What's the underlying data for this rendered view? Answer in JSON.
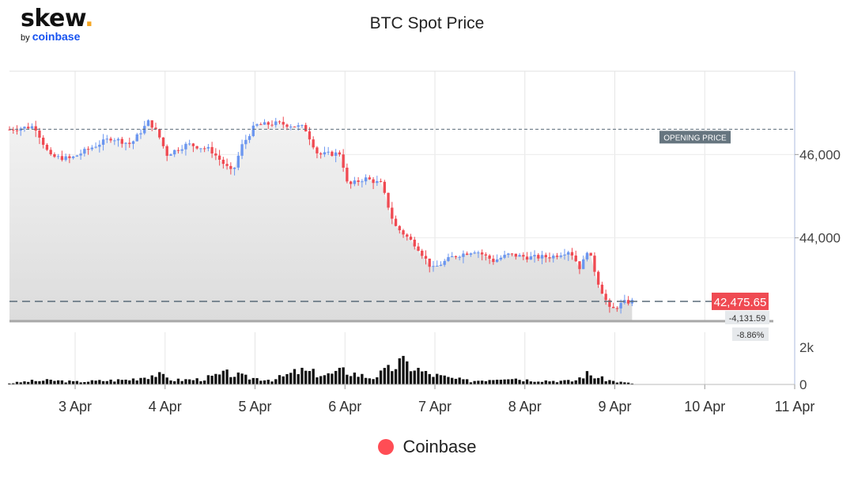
{
  "logo": {
    "main": "skew",
    "dot": ".",
    "by": "by",
    "brand": "coinbase"
  },
  "title": "BTC Spot Price",
  "legend": {
    "label": "Coinbase",
    "color": "#ff4d55"
  },
  "colors": {
    "up": "#6b96f0",
    "down": "#ef4a52",
    "volume": "#111111",
    "area_top": "#f2f2f2",
    "area_bottom": "#dcdcdc"
  },
  "chart_data": {
    "type": "candlestick",
    "title": "BTC Spot Price",
    "x_ticks": [
      "3 Apr",
      "4 Apr",
      "5 Apr",
      "6 Apr",
      "7 Apr",
      "8 Apr",
      "9 Apr",
      "10 Apr",
      "11 Apr"
    ],
    "x_range_days": [
      2.27,
      11.0
    ],
    "x_tick_days": [
      3,
      4,
      5,
      6,
      7,
      8,
      9,
      10,
      11
    ],
    "price_axis": {
      "ticks": [
        46000,
        44000
      ],
      "tick_labels": [
        "46,000",
        "44,000"
      ],
      "range": [
        42000,
        48000
      ]
    },
    "volume_axis": {
      "ticks": [
        2000,
        0
      ],
      "tick_labels": [
        "2k",
        "0"
      ],
      "range": [
        0,
        2800
      ]
    },
    "opening_price": 46607,
    "opening_price_label": "OPENING PRICE",
    "last_price": 42475.65,
    "last_price_label": "42,475.65",
    "change_abs_label": "-4,131.59",
    "change_pct_label": "-8.86%",
    "low_line_price": 42000,
    "price_path": [
      [
        2.27,
        46600
      ],
      [
        2.55,
        46680
      ],
      [
        2.72,
        45950
      ],
      [
        2.95,
        45900
      ],
      [
        3.12,
        46100
      ],
      [
        3.4,
        46400
      ],
      [
        3.62,
        46250
      ],
      [
        3.82,
        46800
      ],
      [
        3.92,
        46500
      ],
      [
        4.02,
        46000
      ],
      [
        4.25,
        46250
      ],
      [
        4.5,
        46120
      ],
      [
        4.75,
        45550
      ],
      [
        4.85,
        46200
      ],
      [
        5.0,
        46700
      ],
      [
        5.25,
        46750
      ],
      [
        5.55,
        46650
      ],
      [
        5.7,
        46000
      ],
      [
        5.95,
        46030
      ],
      [
        6.03,
        45250
      ],
      [
        6.22,
        45430
      ],
      [
        6.4,
        45300
      ],
      [
        6.55,
        44300
      ],
      [
        6.8,
        43800
      ],
      [
        6.97,
        43250
      ],
      [
        7.2,
        43550
      ],
      [
        7.45,
        43700
      ],
      [
        7.65,
        43450
      ],
      [
        7.82,
        43600
      ],
      [
        8.05,
        43530
      ],
      [
        8.3,
        43550
      ],
      [
        8.5,
        43700
      ],
      [
        8.62,
        43250
      ],
      [
        8.7,
        43750
      ],
      [
        8.82,
        42900
      ],
      [
        8.95,
        42250
      ],
      [
        9.1,
        42450
      ],
      [
        9.2,
        42475.65
      ]
    ],
    "volume_path": [
      [
        2.27,
        60
      ],
      [
        2.5,
        180
      ],
      [
        2.75,
        220
      ],
      [
        3.0,
        140
      ],
      [
        3.3,
        200
      ],
      [
        3.6,
        260
      ],
      [
        3.9,
        550
      ],
      [
        4.1,
        230
      ],
      [
        4.4,
        280
      ],
      [
        4.7,
        600
      ],
      [
        4.9,
        380
      ],
      [
        5.2,
        250
      ],
      [
        5.5,
        730
      ],
      [
        5.8,
        500
      ],
      [
        6.0,
        750
      ],
      [
        6.15,
        520
      ],
      [
        6.3,
        350
      ],
      [
        6.5,
        820
      ],
      [
        6.62,
        1200
      ],
      [
        6.75,
        960
      ],
      [
        6.9,
        600
      ],
      [
        7.15,
        350
      ],
      [
        7.4,
        180
      ],
      [
        7.6,
        280
      ],
      [
        7.8,
        420
      ],
      [
        8.0,
        250
      ],
      [
        8.3,
        200
      ],
      [
        8.55,
        180
      ],
      [
        8.68,
        580
      ],
      [
        8.85,
        320
      ],
      [
        9.0,
        160
      ],
      [
        9.15,
        80
      ],
      [
        9.25,
        30
      ]
    ]
  }
}
